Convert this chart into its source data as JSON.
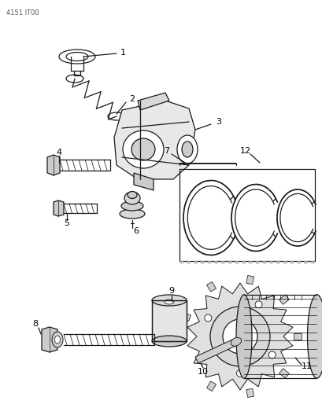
{
  "title": "4151 IT00",
  "bg_color": "#ffffff",
  "line_color": "#1a1a1a",
  "label_color": "#000000",
  "fig_w": 4.1,
  "fig_h": 5.33,
  "dpi": 100
}
